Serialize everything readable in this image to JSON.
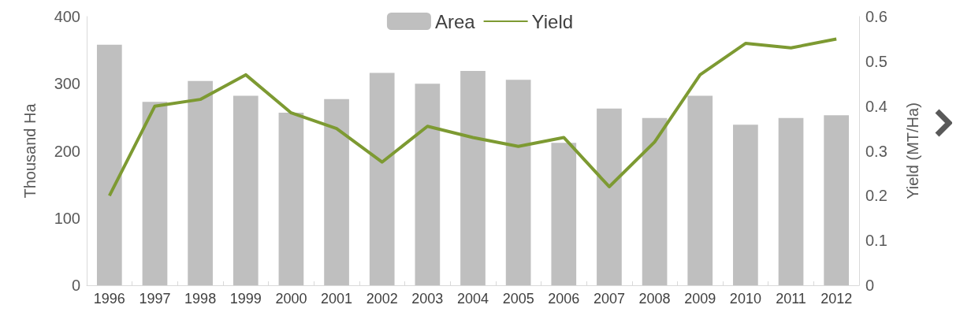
{
  "chart_data": {
    "type": "bar",
    "categories": [
      "1996",
      "1997",
      "1998",
      "1999",
      "2000",
      "2001",
      "2002",
      "2003",
      "2004",
      "2005",
      "2006",
      "2007",
      "2008",
      "2009",
      "2010",
      "2011",
      "2012"
    ],
    "series": [
      {
        "name": "Area",
        "color": "#bfbfbf",
        "values": [
          358,
          273,
          304,
          282,
          257,
          277,
          316,
          300,
          319,
          306,
          212,
          263,
          249,
          282,
          239,
          249,
          253
        ]
      },
      {
        "name": "Yield",
        "type": "line",
        "axis": "y2",
        "color": "#7d9a32",
        "values": [
          0.2,
          0.4,
          0.415,
          0.47,
          0.385,
          0.35,
          0.275,
          0.355,
          0.33,
          0.31,
          0.33,
          0.22,
          0.32,
          0.47,
          0.54,
          0.53,
          0.55
        ]
      }
    ],
    "ylabel": "Thousand Ha",
    "y2label": "Yield (MT/Ha)",
    "ylim": [
      0,
      400
    ],
    "yticks": [
      0,
      100,
      200,
      300,
      400
    ],
    "y2lim": [
      0,
      0.6
    ],
    "y2ticks": [
      0,
      0.1,
      0.2,
      0.3,
      0.4,
      0.5,
      0.6
    ],
    "grid": false,
    "legend": "top",
    "marker": "none"
  }
}
